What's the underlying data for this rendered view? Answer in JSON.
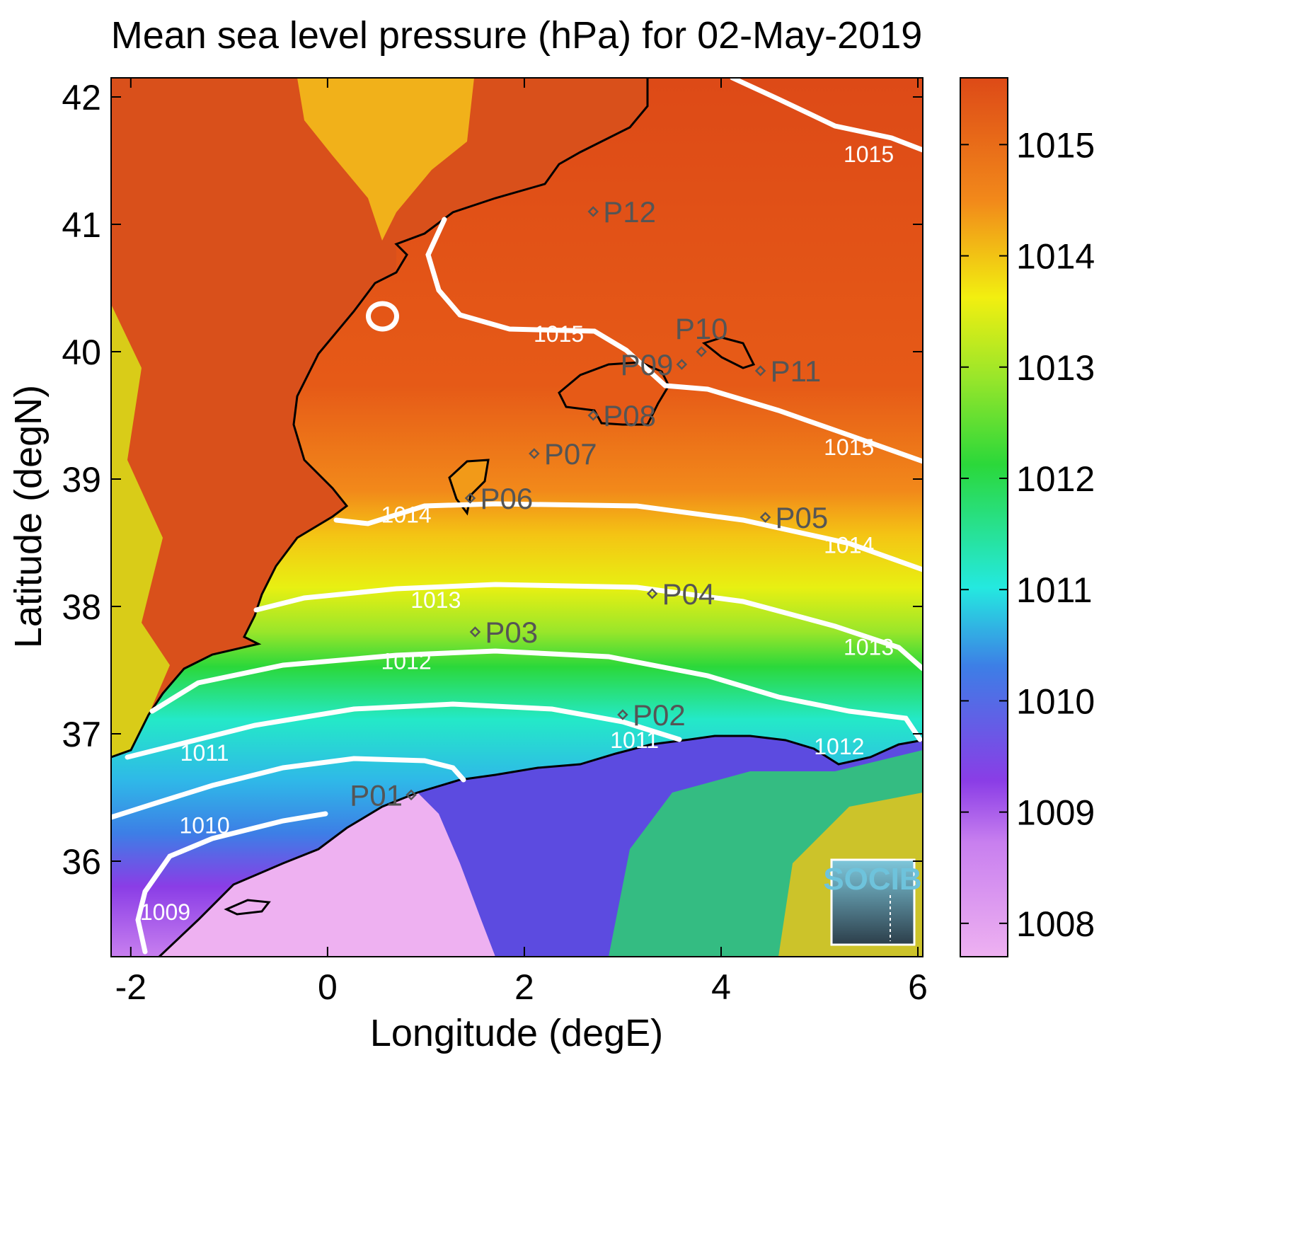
{
  "title": "Mean sea level pressure (hPa) for 02-May-2019",
  "xlabel": "Longitude (degE)",
  "ylabel": "Latitude (degN)",
  "logo_text": "SOCIB",
  "colors": {
    "high": "#dd4a17",
    "orange": "#f2891a",
    "yellow": "#f2ef10",
    "green": "#2bd83a",
    "cyan": "#24e9e0",
    "blue": "#3d7ee6",
    "purple": "#8a3de6",
    "pink": "#eeb1f1",
    "contour": "#ffffff",
    "coast": "#000000",
    "point_label": "#555555"
  },
  "chart_data": {
    "type": "heatmap",
    "xlim": [
      -2.2,
      6.05
    ],
    "ylim": [
      35.25,
      42.15
    ],
    "xticks": [
      -2,
      0,
      2,
      4,
      6
    ],
    "yticks": [
      36,
      37,
      38,
      39,
      40,
      41,
      42
    ],
    "colorbar": {
      "min": 1007.7,
      "max": 1015.6,
      "ticks": [
        1008,
        1009,
        1010,
        1011,
        1012,
        1013,
        1014,
        1015
      ]
    },
    "contour_levels": [
      1009,
      1010,
      1011,
      1012,
      1013,
      1014,
      1015
    ],
    "contour_labels": [
      {
        "text": "1015",
        "x": 5.5,
        "y": 41.55
      },
      {
        "text": "1015",
        "x": 2.35,
        "y": 40.14
      },
      {
        "text": "1015",
        "x": 5.3,
        "y": 39.25
      },
      {
        "text": "1014",
        "x": 0.8,
        "y": 38.72
      },
      {
        "text": "1014",
        "x": 5.3,
        "y": 38.48
      },
      {
        "text": "1013",
        "x": 1.1,
        "y": 38.05
      },
      {
        "text": "1013",
        "x": 5.5,
        "y": 37.68
      },
      {
        "text": "1012",
        "x": 0.8,
        "y": 37.57
      },
      {
        "text": "1012",
        "x": 5.2,
        "y": 36.9
      },
      {
        "text": "1011",
        "x": -1.25,
        "y": 36.85
      },
      {
        "text": "1011",
        "x": 3.12,
        "y": 36.95
      },
      {
        "text": "1010",
        "x": -1.25,
        "y": 36.28
      },
      {
        "text": "1009",
        "x": -1.65,
        "y": 35.6
      }
    ],
    "points": [
      {
        "name": "P01",
        "x": 0.85,
        "y": 36.52,
        "label_side": "left"
      },
      {
        "name": "P02",
        "x": 3.0,
        "y": 37.15,
        "label_side": "right"
      },
      {
        "name": "P03",
        "x": 1.5,
        "y": 37.8,
        "label_side": "right"
      },
      {
        "name": "P04",
        "x": 3.3,
        "y": 38.1,
        "label_side": "right"
      },
      {
        "name": "P05",
        "x": 4.45,
        "y": 38.7,
        "label_side": "right"
      },
      {
        "name": "P06",
        "x": 1.45,
        "y": 38.85,
        "label_side": "right"
      },
      {
        "name": "P07",
        "x": 2.1,
        "y": 39.2,
        "label_side": "right"
      },
      {
        "name": "P08",
        "x": 2.7,
        "y": 39.5,
        "label_side": "right"
      },
      {
        "name": "P09",
        "x": 3.6,
        "y": 39.9,
        "label_side": "left"
      },
      {
        "name": "P10",
        "x": 3.8,
        "y": 40.0,
        "label_side": "above"
      },
      {
        "name": "P11",
        "x": 4.4,
        "y": 39.85,
        "label_side": "right"
      },
      {
        "name": "P12",
        "x": 2.7,
        "y": 41.1,
        "label_side": "right"
      }
    ]
  }
}
